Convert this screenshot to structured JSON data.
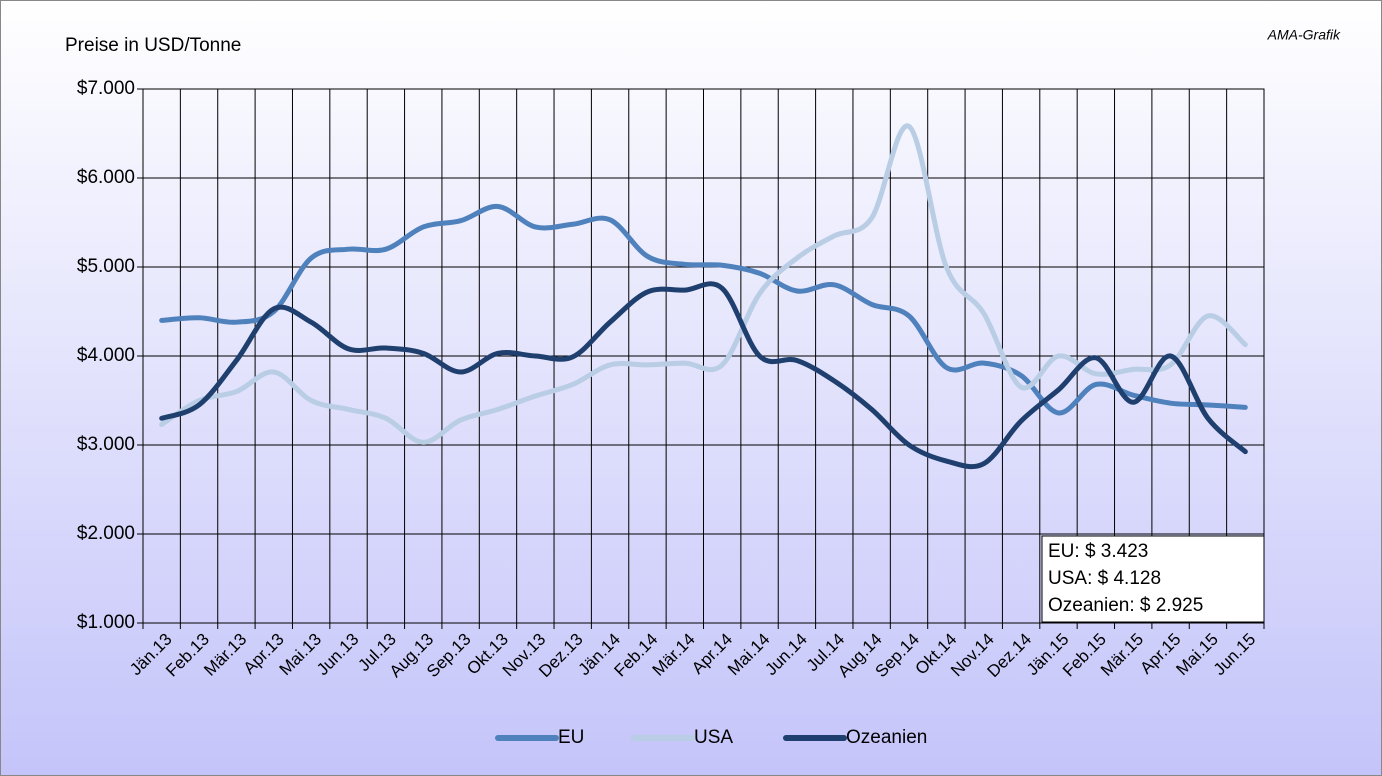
{
  "chart_data": {
    "type": "line",
    "title": "Preise in USD/Tonne",
    "source": "AMA-Grafik",
    "categories": [
      "Jän.13",
      "Feb.13",
      "Mär.13",
      "Apr.13",
      "Mai.13",
      "Jun.13",
      "Jul.13",
      "Aug.13",
      "Sep.13",
      "Okt.13",
      "Nov.13",
      "Dez.13",
      "Jän.14",
      "Feb.14",
      "Mär.14",
      "Apr.14",
      "Mai.14",
      "Jun.14",
      "Jul.14",
      "Aug.14",
      "Sep.14",
      "Okt.14",
      "Nov.14",
      "Dez.14",
      "Jän.15",
      "Feb.15",
      "Mär.15",
      "Apr.15",
      "Mai.15",
      "Jun.15"
    ],
    "series": [
      {
        "name": "EU",
        "color": "#4f81bd",
        "values": [
          4400,
          4430,
          4380,
          4500,
          5100,
          5200,
          5200,
          5450,
          5520,
          5680,
          5450,
          5480,
          5530,
          5120,
          5030,
          5020,
          4930,
          4730,
          4800,
          4580,
          4450,
          3870,
          3920,
          3780,
          3360,
          3680,
          3560,
          3470,
          3450,
          3423
        ]
      },
      {
        "name": "USA",
        "color": "#b9cde5",
        "values": [
          3230,
          3500,
          3600,
          3820,
          3500,
          3400,
          3300,
          3030,
          3280,
          3400,
          3550,
          3680,
          3900,
          3900,
          3920,
          3900,
          4700,
          5100,
          5350,
          5550,
          6580,
          5000,
          4480,
          3650,
          4000,
          3800,
          3850,
          3900,
          4450,
          4128
        ]
      },
      {
        "name": "Ozeanien",
        "color": "#1f3f6e",
        "values": [
          3300,
          3450,
          3950,
          4530,
          4380,
          4080,
          4090,
          4030,
          3820,
          4030,
          4000,
          3990,
          4380,
          4720,
          4740,
          4760,
          4000,
          3950,
          3720,
          3400,
          3000,
          2820,
          2790,
          3270,
          3620,
          3980,
          3480,
          4000,
          3300,
          2925
        ]
      }
    ],
    "ylim": [
      1000,
      7000
    ],
    "yticks": [
      {
        "value": 1000,
        "label": "$1.000"
      },
      {
        "value": 2000,
        "label": "$2.000"
      },
      {
        "value": 3000,
        "label": "$3.000"
      },
      {
        "value": 4000,
        "label": "$4.000"
      },
      {
        "value": 5000,
        "label": "$5.000"
      },
      {
        "value": 6000,
        "label": "$6.000"
      },
      {
        "value": 7000,
        "label": "$7.000"
      }
    ],
    "grid": true,
    "legend": "bottom",
    "annotations": [
      "EU: $ 3.423",
      "USA: $ 4.128",
      "Ozeanien: $ 2.925"
    ]
  }
}
